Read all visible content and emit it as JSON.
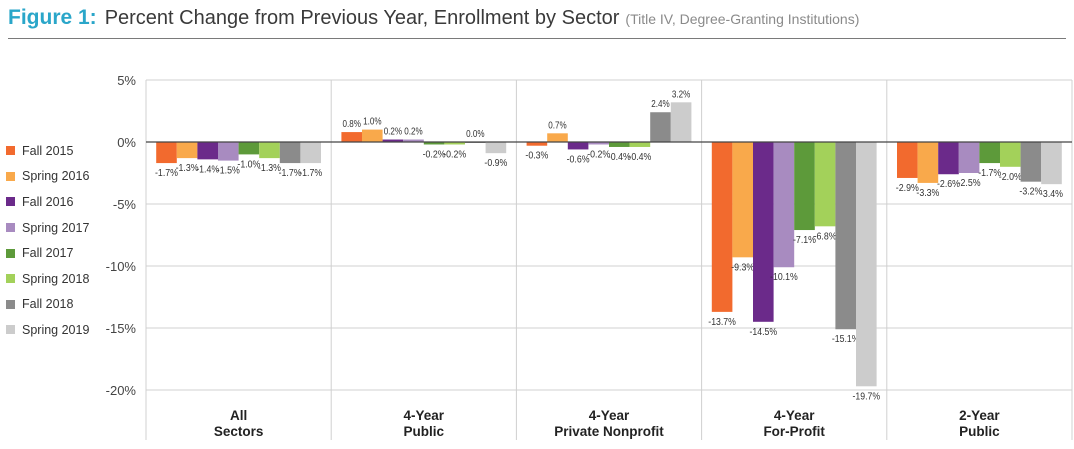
{
  "header": {
    "figure_label": "Figure 1:",
    "title": "Percent Change from Previous Year, Enrollment by Sector",
    "subtitle": "(Title IV, Degree-Granting Institutions)"
  },
  "chart_data": {
    "type": "bar",
    "title": "Percent Change from Previous Year, Enrollment by Sector",
    "subtitle": "(Title IV, Degree-Granting Institutions)",
    "categories": [
      "All Sectors",
      "4-Year Public",
      "4-Year Private Nonprofit",
      "4-Year For-Profit",
      "2-Year Public"
    ],
    "category_lines": [
      [
        "All",
        "Sectors"
      ],
      [
        "4-Year",
        "Public"
      ],
      [
        "4-Year",
        "Private Nonprofit"
      ],
      [
        "4-Year",
        "For-Profit"
      ],
      [
        "2-Year",
        "Public"
      ]
    ],
    "ylim": [
      -20,
      5
    ],
    "yticks": [
      5,
      0,
      -5,
      -10,
      -15,
      -20
    ],
    "ytick_labels": [
      "5%",
      "0%",
      "-5%",
      "-10%",
      "-15%",
      "-20%"
    ],
    "grid": true,
    "legend_position": "left",
    "series": [
      {
        "name": "Fall 2015",
        "color": "#f26a2e",
        "values": [
          -1.7,
          0.8,
          -0.3,
          -13.7,
          -2.9
        ]
      },
      {
        "name": "Spring 2016",
        "color": "#f9a94b",
        "values": [
          -1.3,
          1.0,
          0.7,
          -9.3,
          -3.3
        ]
      },
      {
        "name": "Fall 2016",
        "color": "#6b2a8a",
        "values": [
          -1.4,
          0.2,
          -0.6,
          -14.5,
          -2.6
        ]
      },
      {
        "name": "Spring 2017",
        "color": "#a88bc0",
        "values": [
          -1.5,
          0.2,
          -0.2,
          -10.1,
          -2.5
        ]
      },
      {
        "name": "Fall 2017",
        "color": "#5d9a3a",
        "values": [
          -1.0,
          -0.2,
          -0.4,
          -7.1,
          -1.7
        ]
      },
      {
        "name": "Spring 2018",
        "color": "#a3d15a",
        "values": [
          -1.3,
          -0.2,
          -0.4,
          -6.8,
          -2.0
        ]
      },
      {
        "name": "Fall 2018",
        "color": "#8b8b8b",
        "values": [
          -1.7,
          0.0,
          2.4,
          -15.1,
          -3.2
        ]
      },
      {
        "name": "Spring 2019",
        "color": "#cccccc",
        "values": [
          -1.7,
          -0.9,
          3.2,
          -19.7,
          -3.4
        ]
      }
    ]
  }
}
